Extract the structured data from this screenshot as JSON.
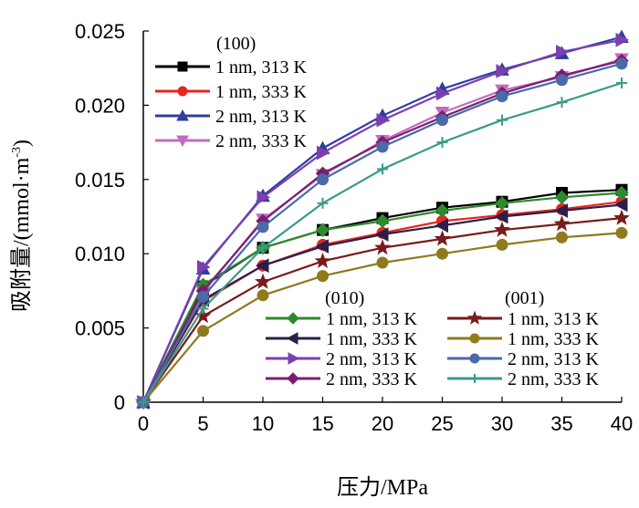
{
  "chart_data": {
    "type": "line",
    "title": "",
    "xlabel": "压力/MPa",
    "ylabel": "吸附量/(mmol·m",
    "ylabel_sup": "-3",
    "ylabel_close": ")",
    "x": [
      0,
      5,
      10,
      15,
      20,
      25,
      30,
      35,
      40
    ],
    "xlim": [
      0,
      40
    ],
    "ylim": [
      0,
      0.025
    ],
    "x_ticks": [
      "0",
      "5",
      "10",
      "15",
      "20",
      "25",
      "30",
      "35",
      "40"
    ],
    "y_ticks": [
      "0",
      "0.005",
      "0.010",
      "0.015",
      "0.020",
      "0.025"
    ],
    "legend_groups": [
      {
        "title": "(100)",
        "position": "top-left"
      },
      {
        "title": "(010)",
        "position": "bottom-center"
      },
      {
        "title": "(001)",
        "position": "bottom-right"
      }
    ],
    "series": [
      {
        "name": "1 nm, 313 K",
        "group": "(100)",
        "color": "#000000",
        "marker": "square",
        "values": [
          0,
          0.0078,
          0.0104,
          0.0116,
          0.0124,
          0.0131,
          0.0135,
          0.0141,
          0.0143
        ]
      },
      {
        "name": "1 nm, 333 K",
        "group": "(100)",
        "color": "#e8251f",
        "marker": "circle",
        "values": [
          0,
          0.0068,
          0.0092,
          0.0106,
          0.0114,
          0.0122,
          0.0126,
          0.013,
          0.0135
        ]
      },
      {
        "name": "2 nm, 313 K",
        "group": "(100)",
        "color": "#2e3f9e",
        "marker": "triangle-up",
        "values": [
          0,
          0.009,
          0.0139,
          0.0171,
          0.0193,
          0.0211,
          0.0224,
          0.0235,
          0.0246
        ]
      },
      {
        "name": "2 nm, 333 K",
        "group": "(100)",
        "color": "#c46ac0",
        "marker": "triangle-down",
        "values": [
          0,
          0.0074,
          0.0123,
          0.0153,
          0.0176,
          0.0195,
          0.021,
          0.0219,
          0.0231
        ]
      },
      {
        "name": "1 nm, 313 K",
        "group": "(010)",
        "color": "#2f8a2e",
        "marker": "diamond",
        "values": [
          0,
          0.0079,
          0.0104,
          0.0116,
          0.0122,
          0.0129,
          0.0134,
          0.0138,
          0.0141
        ]
      },
      {
        "name": "1 nm, 333 K",
        "group": "(010)",
        "color": "#2a1f4a",
        "marker": "triangle-left",
        "values": [
          0,
          0.0069,
          0.0092,
          0.0105,
          0.0113,
          0.0119,
          0.0125,
          0.0129,
          0.0133
        ]
      },
      {
        "name": "2 nm, 313 K",
        "group": "(010)",
        "color": "#7a3fb0",
        "marker": "triangle-right",
        "values": [
          0,
          0.0091,
          0.0138,
          0.0168,
          0.019,
          0.0208,
          0.0223,
          0.0236,
          0.0244
        ]
      },
      {
        "name": "2 nm, 333 K",
        "group": "(010)",
        "color": "#7a1e6e",
        "marker": "diamond",
        "values": [
          0,
          0.0075,
          0.0122,
          0.0154,
          0.0175,
          0.0192,
          0.0208,
          0.022,
          0.023
        ]
      },
      {
        "name": "1 nm, 313 K",
        "group": "(001)",
        "color": "#7a1a1a",
        "marker": "star",
        "values": [
          0,
          0.0058,
          0.0081,
          0.0095,
          0.0104,
          0.011,
          0.0116,
          0.012,
          0.0124
        ]
      },
      {
        "name": "1 nm, 333 K",
        "group": "(001)",
        "color": "#8f7a1e",
        "marker": "circle",
        "values": [
          0,
          0.0048,
          0.0072,
          0.0085,
          0.0094,
          0.01,
          0.0106,
          0.0111,
          0.0114
        ]
      },
      {
        "name": "2 nm, 313 K",
        "group": "(001)",
        "color": "#4a6aa8",
        "marker": "circle",
        "values": [
          0,
          0.0071,
          0.0118,
          0.015,
          0.0172,
          0.019,
          0.0206,
          0.0217,
          0.0228
        ]
      },
      {
        "name": "2 nm, 333 K",
        "group": "(001)",
        "color": "#3a9a8a",
        "marker": "plus",
        "values": [
          0,
          0.0063,
          0.0104,
          0.0134,
          0.0157,
          0.0175,
          0.019,
          0.0202,
          0.0215
        ]
      }
    ]
  }
}
